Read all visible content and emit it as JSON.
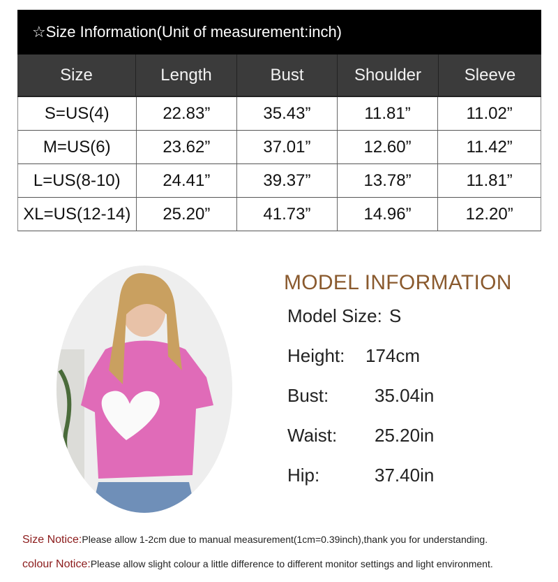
{
  "size_table": {
    "title": "☆Size Information(Unit of measurement:inch)",
    "headers": [
      "Size",
      "Length",
      "Bust",
      "Shoulder",
      "Sleeve"
    ],
    "rows": [
      [
        "S=US(4)",
        "22.83”",
        "35.43”",
        "11.81”",
        "11.02”"
      ],
      [
        "M=US(6)",
        "23.62”",
        "37.01”",
        "12.60”",
        "11.42”"
      ],
      [
        "L=US(8-10)",
        "24.41”",
        "39.37”",
        "13.78”",
        "11.81”"
      ],
      [
        "XL=US(12-14)",
        "25.20”",
        "41.73”",
        "14.96”",
        "12.20”"
      ]
    ]
  },
  "model_info": {
    "title": "MODEL INFORMATION",
    "lines": [
      {
        "label": "Model Size:",
        "value": "S"
      },
      {
        "label": "Height:",
        "value": "174cm"
      },
      {
        "label": "Bust:",
        "value": "35.04in"
      },
      {
        "label": "Waist:",
        "value": "25.20in"
      },
      {
        "label": "Hip:",
        "value": "37.40in"
      }
    ]
  },
  "notices": [
    {
      "label": "Size Notice:",
      "text": "Please allow 1-2cm due to manual measurement(1cm=0.39inch),thank you for understanding."
    },
    {
      "label": "colour Notice:",
      "text": "Please allow slight colour a little difference to different monitor settings and light environment."
    }
  ],
  "colors": {
    "title_bg": "#000000",
    "header_bg": "#3b3b3b",
    "model_title": "#8a5a2e",
    "notice_label": "#8b1a1a",
    "shirt": "#e06bb8"
  }
}
